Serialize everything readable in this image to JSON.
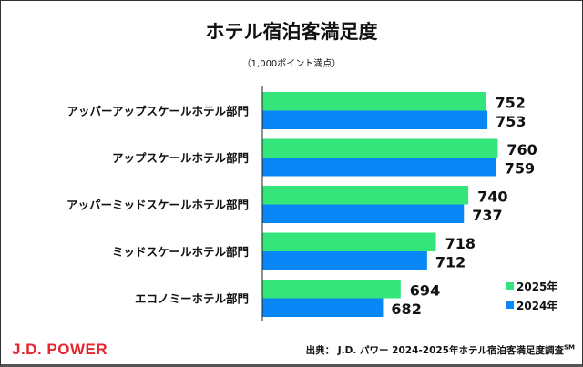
{
  "chart_data": {
    "type": "bar",
    "orientation": "horizontal",
    "title": "ホテル宿泊客満足度",
    "subtitle": "（1,000ポイント満点）",
    "categories": [
      "アッパーアップスケールホテル部門",
      "アップスケールホテル部門",
      "アッパーミッドスケールホテル部門",
      "ミッドスケールホテル部門",
      "エコノミーホテル部門"
    ],
    "series": [
      {
        "name": "2025年",
        "color": "#33e57a",
        "values": [
          752,
          760,
          740,
          718,
          694
        ]
      },
      {
        "name": "2024年",
        "color": "#0a87f7",
        "values": [
          753,
          759,
          737,
          712,
          682
        ]
      }
    ],
    "xlim": [
      600,
      800
    ],
    "grid": false,
    "legend": "bottom-right",
    "data_labels": true
  },
  "footer": {
    "logo": "J.D. POWER",
    "source": "出典： J.D. パワー 2024-2025年ホテル宿泊客満足度調査",
    "source_mark": "SM"
  }
}
